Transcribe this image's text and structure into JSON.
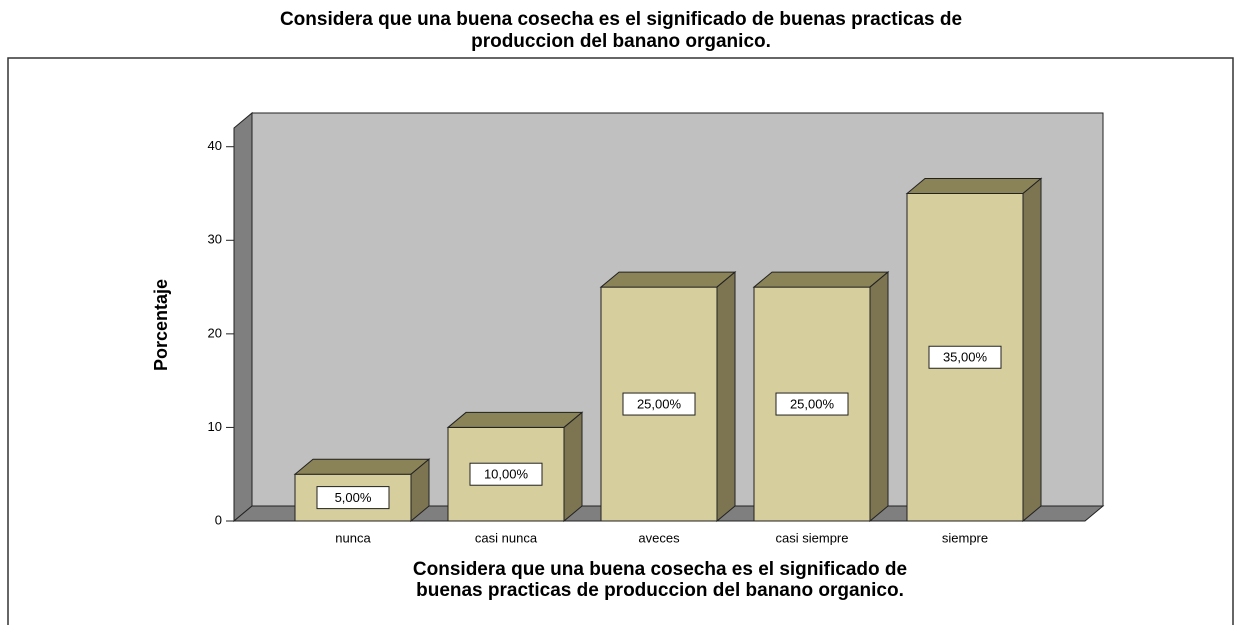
{
  "chart_data": {
    "type": "bar3d",
    "title": [
      "Considera que una buena cosecha es el significado de buenas practicas de",
      "produccion del banano organico."
    ],
    "xlabel": [
      "Considera que una buena cosecha es el significado de",
      "buenas practicas de produccion del banano organico."
    ],
    "ylabel": "Porcentaje",
    "categories": [
      "nunca",
      "casi nunca",
      "aveces",
      "casi siempre",
      "siempre"
    ],
    "values": [
      5,
      10,
      25,
      25,
      35
    ],
    "value_labels": [
      "5,00%",
      "10,00%",
      "25,00%",
      "25,00%",
      "35,00%"
    ],
    "color": "#d6ce9c",
    "ylim": [
      0,
      42
    ],
    "yticks": [
      0,
      10,
      20,
      30,
      40
    ]
  }
}
